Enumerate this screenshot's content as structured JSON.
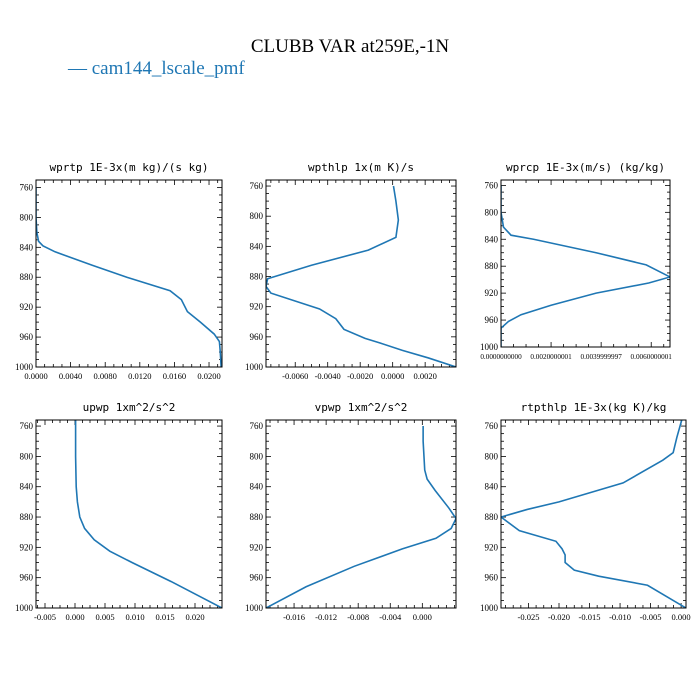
{
  "title": "CLUBB VAR at259E,-1N",
  "legend": {
    "label": "cam144_lscale_pmf",
    "color": "#1f77b4"
  },
  "chart_data": [
    {
      "type": "line",
      "title": "wprtp  1E-3x(m kg)/(s kg)",
      "xlim": [
        0.0,
        0.0215
      ],
      "xticks": [
        "0.0000",
        "0.0040",
        "0.0080",
        "0.0120",
        "0.0160",
        "0.0200"
      ],
      "xtick_values": [
        0.0,
        0.004,
        0.008,
        0.012,
        0.016,
        0.02
      ],
      "ylim": [
        1000,
        750
      ],
      "yticks": [
        "760",
        "800",
        "840",
        "880",
        "920",
        "960",
        "1000"
      ],
      "ytick_values": [
        760,
        800,
        840,
        880,
        920,
        960,
        1000
      ],
      "series": [
        {
          "color": "#1f77b4",
          "x": [
            0.0,
            0.0,
            0.0001,
            0.0003,
            0.0008,
            0.0022,
            0.0065,
            0.0105,
            0.0155,
            0.0168,
            0.0175,
            0.019,
            0.0206,
            0.0212,
            0.0213,
            0.0214
          ],
          "y": [
            760,
            800,
            820,
            832,
            838,
            846,
            864,
            880,
            898,
            910,
            926,
            940,
            956,
            966,
            980,
            1000
          ]
        }
      ]
    },
    {
      "type": "line",
      "title": "wpthlp  1x(m K)/s",
      "xlim": [
        -0.0078,
        0.0039
      ],
      "xticks": [
        "-0.0060",
        "-0.0040",
        "-0.0020",
        "0.0000",
        "0.0020"
      ],
      "xtick_values": [
        -0.006,
        -0.004,
        -0.002,
        0.0,
        0.002
      ],
      "ylim": [
        1000,
        752
      ],
      "yticks": [
        "760",
        "800",
        "840",
        "880",
        "920",
        "960",
        "1000"
      ],
      "ytick_values": [
        760,
        800,
        840,
        880,
        920,
        960,
        1000
      ],
      "series": [
        {
          "color": "#1f77b4",
          "x": [
            5e-05,
            0.0002,
            0.00035,
            0.0002,
            -0.0015,
            -0.005,
            -0.0077,
            -0.0078,
            -0.0075,
            -0.0045,
            -0.0035,
            -0.003,
            -0.0017,
            -0.0008,
            0.0006,
            0.0022,
            0.0039
          ],
          "y": [
            760,
            780,
            805,
            828,
            845,
            865,
            883,
            893,
            902,
            923,
            936,
            950,
            962,
            968,
            978,
            988,
            1000
          ]
        }
      ]
    },
    {
      "type": "line",
      "title": "wprcp  1E-3x(m/s) (kg/kg)",
      "xlim": [
        0.0,
        0.00675
      ],
      "xticks": [
        "0.0000000000",
        "0.0020000001",
        "0.0039999997",
        "0.0060000001"
      ],
      "xtick_values": [
        0.0,
        0.002,
        0.004,
        0.006
      ],
      "ylim": [
        1000,
        752
      ],
      "yticks": [
        "760",
        "800",
        "840",
        "880",
        "920",
        "960",
        "1000"
      ],
      "ytick_values": [
        760,
        800,
        840,
        880,
        920,
        960,
        1000
      ],
      "series": [
        {
          "color": "#1f77b4",
          "x": [
            0.0,
            0.0,
            0.0001,
            0.0004,
            0.0013,
            0.0038,
            0.0058,
            0.00675,
            0.0059,
            0.0038,
            0.002,
            0.0008,
            0.0003,
            0.0,
            0.0
          ],
          "y": [
            760,
            800,
            822,
            834,
            840,
            860,
            878,
            896,
            905,
            920,
            938,
            952,
            962,
            972,
            1000
          ]
        }
      ]
    },
    {
      "type": "line",
      "title": "upwp  1xm^2/s^2",
      "xlim": [
        -0.0065,
        0.0245
      ],
      "xticks": [
        "-0.005",
        "0.000",
        "0.005",
        "0.010",
        "0.015",
        "0.020"
      ],
      "xtick_values": [
        -0.005,
        0.0,
        0.005,
        0.01,
        0.015,
        0.02
      ],
      "ylim": [
        1000,
        752
      ],
      "yticks": [
        "760",
        "800",
        "840",
        "880",
        "920",
        "960",
        "1000"
      ],
      "ytick_values": [
        760,
        800,
        840,
        880,
        920,
        960,
        1000
      ],
      "series": [
        {
          "color": "#1f77b4",
          "x": [
            0.0001,
            0.0001,
            0.0002,
            0.0004,
            0.0008,
            0.0016,
            0.0032,
            0.0058,
            0.0095,
            0.016,
            0.0245
          ],
          "y": [
            752,
            800,
            840,
            860,
            880,
            895,
            910,
            925,
            940,
            965,
            1000
          ]
        }
      ]
    },
    {
      "type": "line",
      "title": "vpwp  1xm^2/s^2",
      "xlim": [
        -0.0195,
        0.0042
      ],
      "xticks": [
        "-0.016",
        "-0.012",
        "-0.008",
        "-0.004",
        "0.000"
      ],
      "xtick_values": [
        -0.016,
        -0.012,
        -0.008,
        -0.004,
        0.0
      ],
      "ylim": [
        1000,
        752
      ],
      "yticks": [
        "760",
        "800",
        "840",
        "880",
        "920",
        "960",
        "1000"
      ],
      "ytick_values": [
        760,
        800,
        840,
        880,
        920,
        960,
        1000
      ],
      "series": [
        {
          "color": "#1f77b4",
          "x": [
            0.0001,
            0.0001,
            0.0003,
            0.0006,
            0.0016,
            0.0033,
            0.0042,
            0.0036,
            0.0017,
            -0.0025,
            -0.0085,
            -0.0145,
            -0.0195
          ],
          "y": [
            760,
            780,
            818,
            830,
            845,
            868,
            882,
            895,
            908,
            922,
            945,
            972,
            1000
          ]
        }
      ]
    },
    {
      "type": "line",
      "title": "rtpthlp  1E-3x(kg K)/kg",
      "xlim": [
        -0.0295,
        0.0008
      ],
      "xticks": [
        "-0.025",
        "-0.020",
        "-0.015",
        "-0.010",
        "-0.005",
        "0.000"
      ],
      "xtick_values": [
        -0.025,
        -0.02,
        -0.015,
        -0.01,
        -0.005,
        0.0
      ],
      "ylim": [
        1000,
        752
      ],
      "yticks": [
        "760",
        "800",
        "840",
        "880",
        "920",
        "960",
        "1000"
      ],
      "ytick_values": [
        760,
        800,
        840,
        880,
        920,
        960,
        1000
      ],
      "series": [
        {
          "color": "#1f77b4",
          "x": [
            0.0001,
            -0.0007,
            -0.0013,
            -0.003,
            -0.0095,
            -0.02,
            -0.0252,
            -0.0295,
            -0.0265,
            -0.0205,
            -0.0195,
            -0.019,
            -0.019,
            -0.0175,
            -0.0135,
            -0.0055,
            0.0008
          ],
          "y": [
            752,
            775,
            795,
            805,
            835,
            860,
            870,
            880,
            898,
            912,
            922,
            930,
            940,
            950,
            958,
            970,
            1000
          ]
        }
      ]
    }
  ]
}
